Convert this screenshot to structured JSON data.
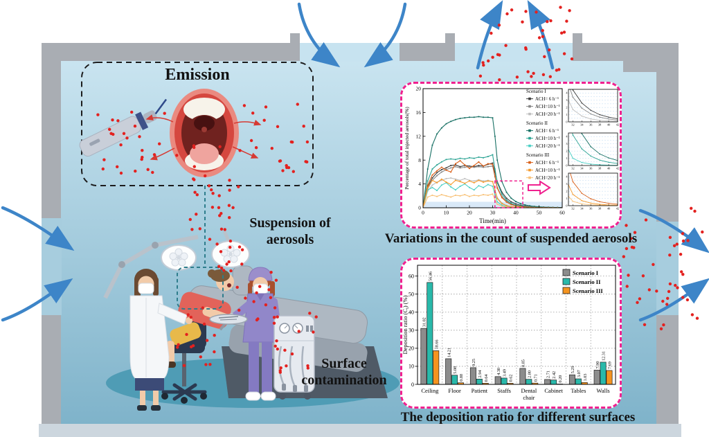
{
  "labels": {
    "emission": "Emission",
    "suspension_line1": "Suspension of",
    "suspension_line2": "aerosols",
    "surface_line1": "Surface",
    "surface_line2": "contamination",
    "caption_top": "Variations in the count of suspended aerosols",
    "caption_bottom": "The deposition ratio for different surfaces"
  },
  "colors": {
    "particle": "#e3211f",
    "airflow": "#3d85c8",
    "panel_border": "#f0218f",
    "wall": "#a9adb3",
    "scenario1": "#8c8c8c",
    "scenario2": "#29b9aa",
    "scenario3": "#f5941f"
  },
  "chart_data": [
    {
      "type": "line",
      "xlabel": "Time(min)",
      "ylabel": "Percentage of total injected aerosols(%)",
      "xlim": [
        0,
        60
      ],
      "ylim": [
        0,
        20
      ],
      "xticks": [
        0,
        10,
        20,
        30,
        40,
        50,
        60
      ],
      "yticks": [
        0,
        4,
        8,
        12,
        16,
        20
      ],
      "highlight_band": [
        0,
        1
      ],
      "zoom_box": {
        "x": [
          31,
          43
        ],
        "y": [
          0,
          4.5
        ]
      },
      "legend_groups": [
        "Scenario I",
        "Scenario II",
        "Scenario III"
      ],
      "insets": {
        "xlim": [
          31,
          42
        ],
        "ylim": [
          0,
          4.5
        ],
        "xticks": [
          32,
          34,
          36,
          38,
          40,
          42
        ],
        "yticks": [
          0,
          1,
          2,
          3,
          4
        ]
      },
      "x": [
        0,
        2,
        4,
        6,
        8,
        10,
        12,
        14,
        16,
        18,
        20,
        22,
        24,
        26,
        28,
        30,
        31,
        32,
        34,
        36,
        38,
        40,
        42,
        44,
        46,
        48,
        50,
        52,
        54,
        56,
        58,
        60
      ],
      "series": [
        {
          "scenario": "Scenario I",
          "ach": "ACH=  6 h⁻¹",
          "color": "#3c3c3c",
          "values": [
            0,
            3.5,
            5.0,
            5.9,
            6.4,
            6.7,
            7.1,
            7.2,
            6.9,
            7.1,
            7.0,
            6.9,
            7.1,
            7.0,
            7.3,
            7.5,
            6.0,
            4.4,
            2.6,
            1.6,
            1.0,
            0.65,
            0.42,
            0.28,
            0.18,
            0.12,
            0.09,
            0.07,
            0.05,
            0.04,
            0.03,
            0.03
          ]
        },
        {
          "scenario": "Scenario I",
          "ach": "ACH=10 h⁻¹",
          "color": "#858585",
          "values": [
            0,
            3.2,
            4.6,
            5.4,
            6.0,
            6.4,
            6.7,
            6.9,
            6.7,
            6.8,
            6.9,
            6.8,
            6.9,
            6.8,
            6.9,
            7.0,
            5.2,
            3.4,
            1.9,
            1.1,
            0.65,
            0.4,
            0.25,
            0.16,
            0.1,
            0.07,
            0.05,
            0.04,
            0.03,
            0.02,
            0.02,
            0.01
          ]
        },
        {
          "scenario": "Scenario I",
          "ach": "ACH=20 h⁻¹",
          "color": "#bdbdbd",
          "values": [
            0,
            2.8,
            3.8,
            4.3,
            4.6,
            4.9,
            5.0,
            4.8,
            4.6,
            4.9,
            4.6,
            4.5,
            4.7,
            4.5,
            4.6,
            4.4,
            3.0,
            1.7,
            0.8,
            0.4,
            0.22,
            0.13,
            0.08,
            0.05,
            0.04,
            0.03,
            0.02,
            0.02,
            0.01,
            0.01,
            0.01,
            0.01
          ]
        },
        {
          "scenario": "Scenario II",
          "ach": "ACH=  6 h⁻¹",
          "color": "#166f63",
          "values": [
            0,
            6.5,
            10.5,
            12.4,
            13.4,
            14.1,
            14.5,
            14.8,
            15.0,
            15.1,
            15.2,
            15.2,
            15.3,
            15.2,
            15.2,
            15.1,
            12.0,
            8.0,
            4.4,
            2.6,
            1.6,
            1.05,
            0.7,
            0.48,
            0.33,
            0.23,
            0.17,
            0.12,
            0.09,
            0.07,
            0.05,
            0.04
          ]
        },
        {
          "scenario": "Scenario II",
          "ach": "ACH=10 h⁻¹",
          "color": "#2aa393",
          "values": [
            0,
            4.5,
            6.5,
            7.2,
            7.7,
            8.1,
            8.2,
            8.1,
            8.3,
            8.2,
            8.4,
            8.3,
            8.5,
            8.4,
            8.6,
            8.9,
            6.5,
            4.2,
            2.3,
            1.3,
            0.75,
            0.45,
            0.28,
            0.18,
            0.12,
            0.08,
            0.06,
            0.04,
            0.03,
            0.02,
            0.02,
            0.01
          ]
        },
        {
          "scenario": "Scenario II",
          "ach": "ACH=20 h⁻¹",
          "color": "#49cfc4",
          "values": [
            0,
            3.0,
            3.4,
            2.9,
            3.8,
            4.2,
            3.5,
            3.0,
            3.6,
            4.0,
            3.4,
            3.0,
            3.7,
            3.4,
            3.9,
            3.6,
            2.2,
            1.0,
            0.42,
            0.2,
            0.11,
            0.06,
            0.04,
            0.03,
            0.02,
            0.02,
            0.01,
            0.01,
            0.01,
            0,
            0,
            0
          ]
        },
        {
          "scenario": "Scenario III",
          "ach": "ACH=  6 h⁻¹",
          "color": "#d95f18",
          "values": [
            0,
            3.8,
            5.5,
            6.2,
            6.8,
            6.3,
            6.0,
            7.4,
            7.9,
            7.2,
            6.6,
            7.1,
            7.7,
            7.0,
            7.4,
            7.3,
            5.3,
            3.3,
            1.7,
            0.95,
            0.55,
            0.33,
            0.2,
            0.13,
            0.09,
            0.06,
            0.04,
            0.03,
            0.02,
            0.02,
            0.01,
            0.01
          ]
        },
        {
          "scenario": "Scenario III",
          "ach": "ACH=10 h⁻¹",
          "color": "#f59a2b",
          "values": [
            0,
            3.4,
            4.6,
            4.2,
            4.8,
            4.3,
            3.9,
            4.6,
            4.4,
            4.1,
            4.5,
            4.2,
            4.6,
            4.3,
            4.5,
            4.4,
            2.9,
            1.55,
            0.7,
            0.35,
            0.19,
            0.11,
            0.07,
            0.05,
            0.03,
            0.02,
            0.02,
            0.01,
            0.01,
            0.01,
            0,
            0
          ]
        },
        {
          "scenario": "Scenario III",
          "ach": "ACH=20 h⁻¹",
          "color": "#f8c176",
          "values": [
            0,
            1.8,
            2.1,
            1.9,
            2.2,
            2.0,
            1.8,
            2.1,
            2.0,
            2.2,
            1.9,
            2.1,
            2.0,
            2.2,
            2.1,
            2.3,
            1.3,
            0.6,
            0.25,
            0.12,
            0.07,
            0.04,
            0.03,
            0.02,
            0.01,
            0.01,
            0.01,
            0,
            0,
            0,
            0,
            0
          ]
        }
      ]
    },
    {
      "type": "bar",
      "ylabel": "Deposition ratio (Ci) (%)",
      "ylim": [
        0,
        66
      ],
      "yticks": [
        0,
        10,
        20,
        30,
        40,
        50,
        60
      ],
      "categories": [
        "Ceiling",
        "Floor",
        "Patient",
        "Staffs",
        "Dental\nchair",
        "Cabinet",
        "Tables",
        "Walls"
      ],
      "series": [
        {
          "name": "Scenario I",
          "color": "#8c8c8c",
          "values": [
            31.02,
            14.21,
            9.25,
            4.3,
            8.85,
            2.71,
            5.29,
            7.9
          ]
        },
        {
          "name": "Scenario II",
          "color": "#29b9aa",
          "values": [
            56.46,
            5.08,
            2.94,
            3.49,
            2.8,
            2.42,
            3.07,
            12.31
          ]
        },
        {
          "name": "Scenario III",
          "color": "#f5941f",
          "values": [
            18.66,
            0.88,
            0.64,
            0.62,
            0.71,
            0.2,
            1.03,
            7.69
          ]
        }
      ]
    }
  ]
}
